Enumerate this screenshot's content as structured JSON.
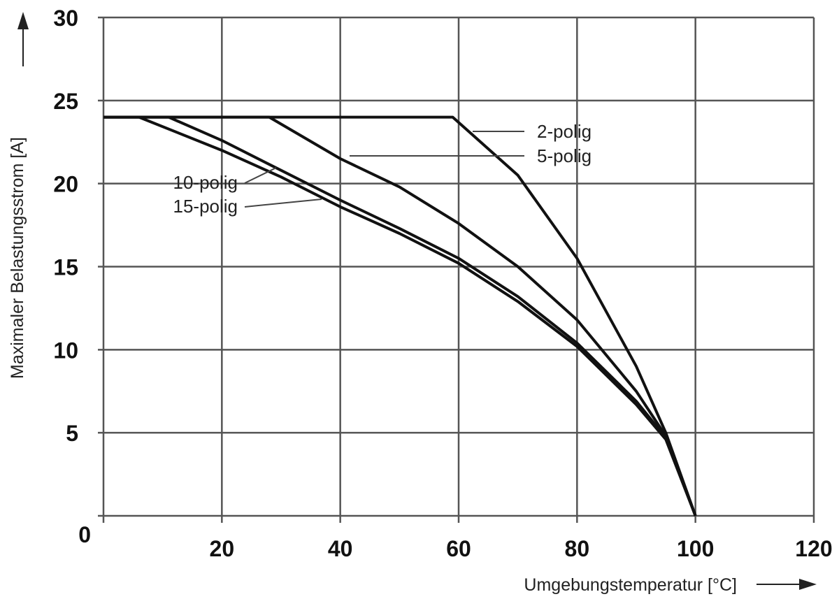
{
  "chart_data": {
    "type": "line",
    "xlabel": "Umgebungstemperatur [°C]",
    "ylabel": "Maximaler Belastungsstrom [A]",
    "xlim": [
      0,
      120
    ],
    "ylim": [
      0,
      30
    ],
    "x_ticks": [
      "20",
      "40",
      "60",
      "80",
      "100",
      "120"
    ],
    "y_ticks": [
      "30",
      "25",
      "20",
      "15",
      "10",
      "5",
      "0"
    ],
    "grid": true,
    "series": [
      {
        "name": "2-polig",
        "x": [
          0,
          59,
          70,
          80,
          90,
          95,
          100
        ],
        "y": [
          24,
          24,
          20.5,
          15.5,
          9,
          5,
          0
        ]
      },
      {
        "name": "5-polig",
        "x": [
          0,
          28,
          40,
          50,
          60,
          70,
          80,
          90,
          95,
          100
        ],
        "y": [
          24,
          24,
          21.5,
          19.8,
          17.6,
          15.0,
          11.8,
          7.5,
          4.8,
          0
        ]
      },
      {
        "name": "10-polig",
        "x": [
          0,
          11,
          20,
          30,
          40,
          50,
          60,
          70,
          80,
          90,
          95,
          100
        ],
        "y": [
          24,
          24,
          22.6,
          20.8,
          19.0,
          17.3,
          15.5,
          13.2,
          10.4,
          6.9,
          4.7,
          0
        ]
      },
      {
        "name": "15-polig",
        "x": [
          0,
          6,
          20,
          30,
          40,
          50,
          60,
          70,
          80,
          90,
          95,
          100
        ],
        "y": [
          24,
          24,
          22.0,
          20.4,
          18.6,
          17.0,
          15.2,
          12.9,
          10.2,
          6.7,
          4.6,
          0
        ]
      }
    ]
  }
}
